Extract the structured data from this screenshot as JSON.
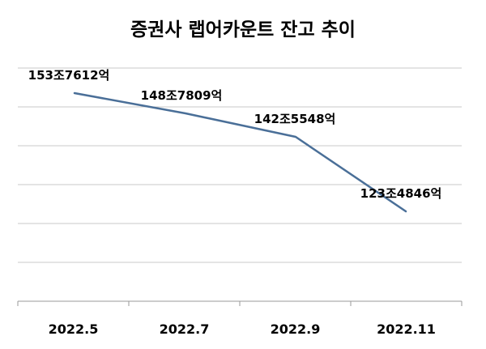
{
  "chart_data": {
    "type": "line",
    "title": "증권사 랩어카운트 잔고 추이",
    "categories": [
      "2022.5",
      "2022.7",
      "2022.9",
      "2022.11"
    ],
    "series": [
      {
        "values": [
          153.7612,
          148.7809,
          142.5548,
          123.4846
        ],
        "labels": [
          "153조7612억",
          "148조7809억",
          "142조5548억",
          "123조4846억"
        ],
        "color": "#4a6f98"
      }
    ],
    "xlabel": "",
    "ylabel": "",
    "grid": true
  }
}
